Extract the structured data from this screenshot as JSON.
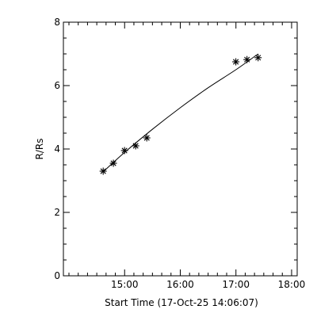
{
  "chart_data": {
    "type": "scatter",
    "xlabel": "Start Time (17-Oct-25 14:06:07)",
    "ylabel": "R/Rs",
    "x_ticks": [
      "15:00",
      "16:00",
      "17:00",
      "18:00"
    ],
    "x_tick_hours": [
      0.8997,
      1.8997,
      2.8997,
      3.8997
    ],
    "xlim_hours": [
      -0.2,
      4.0
    ],
    "y_ticks": [
      "0",
      "2",
      "4",
      "6",
      "8"
    ],
    "ylim": [
      0,
      8
    ],
    "grid": false,
    "series": [
      {
        "marker": "asterisk",
        "points": [
          {
            "t": "14:37",
            "y": 3.3
          },
          {
            "t": "14:48",
            "y": 3.55
          },
          {
            "t": "15:00",
            "y": 3.95
          },
          {
            "t": "15:12",
            "y": 4.1
          },
          {
            "t": "15:24",
            "y": 4.35
          },
          {
            "t": "17:00",
            "y": 6.75
          },
          {
            "t": "17:12",
            "y": 6.82
          },
          {
            "t": "17:24",
            "y": 6.88
          }
        ]
      }
    ],
    "fit_curve": {
      "points": [
        {
          "t": "14:37",
          "y": 3.28
        },
        {
          "t": "15:00",
          "y": 3.89
        },
        {
          "t": "15:30",
          "y": 4.62
        },
        {
          "t": "16:00",
          "y": 5.3
        },
        {
          "t": "16:30",
          "y": 5.93
        },
        {
          "t": "17:00",
          "y": 6.5
        },
        {
          "t": "17:24",
          "y": 7.0
        }
      ]
    }
  }
}
